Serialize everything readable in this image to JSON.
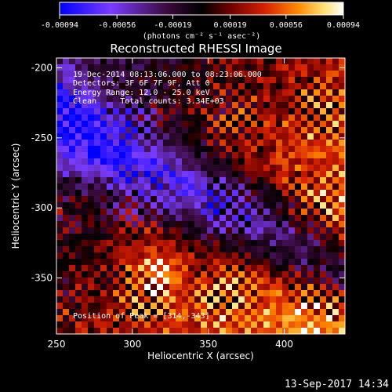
{
  "colorbar": {
    "tick_labels": [
      "-0.00094",
      "-0.00056",
      "-0.00019",
      "0.00019",
      "0.00056",
      "0.00094"
    ],
    "tick_values": [
      -0.00094,
      -0.00056,
      -0.00019,
      0.00019,
      0.00056,
      0.00094
    ],
    "range": [
      -0.00094,
      0.00094
    ],
    "unit_label": "(photons cm⁻² s⁻¹ asec⁻²)",
    "colormap": [
      "#0000ff",
      "#7a3cff",
      "#3a0a3a",
      "#000000",
      "#6e0000",
      "#d42000",
      "#ff8a00",
      "#ffe070",
      "#ffffff"
    ]
  },
  "chart_data": {
    "type": "heatmap",
    "title": "Reconstructed RHESSI Image",
    "xlabel": "Heliocentric X (arcsec)",
    "ylabel": "Heliocentric Y (arcsec)",
    "xlim": [
      250,
      440
    ],
    "ylim": [
      -390,
      -193
    ],
    "x_ticks": [
      250,
      300,
      350,
      400
    ],
    "x_tick_labels": [
      "250",
      "300",
      "350",
      "400"
    ],
    "y_ticks": [
      -200,
      -250,
      -300,
      -350
    ],
    "y_tick_labels": [
      "-200",
      "-250",
      "-300",
      "-350"
    ],
    "annotations": [
      "19-Dec-2014 08:13:06.000 to 08:23:06.000",
      "Detectors: 3F 6F 7F 9F, Att 0",
      "Energy Range: 12.0 - 25.0 keV",
      "Clean     Total counts: 3.34E+03",
      "Position of Peak = [314,-343]"
    ],
    "peak": {
      "x": 314,
      "y": -343
    }
  },
  "footer": {
    "timestamp": "13-Sep-2017 14:34"
  }
}
